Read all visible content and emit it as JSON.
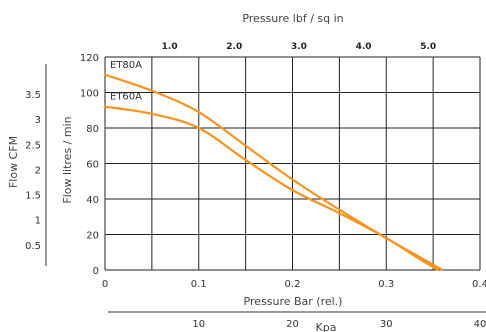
{
  "chart_data": {
    "type": "line",
    "title": "",
    "xlabel": "Pressure Bar (rel.)",
    "ylabel": "Flow litres / min",
    "xlim": [
      0,
      0.4
    ],
    "ylim": [
      0,
      120
    ],
    "x_ticks": [
      "0",
      "0.1",
      "0.2",
      "0.3",
      "0.4"
    ],
    "y_ticks": [
      "0",
      "20",
      "40",
      "60",
      "80",
      "100",
      "120"
    ],
    "grid": true,
    "line_color": "#f5941f",
    "series": [
      {
        "name": "ET80A",
        "x": [
          0.0,
          0.05,
          0.1,
          0.15,
          0.2,
          0.25,
          0.3,
          0.34,
          0.36
        ],
        "y": [
          110,
          101,
          89,
          70,
          51,
          34,
          18,
          6,
          0
        ]
      },
      {
        "name": "ET60A",
        "x": [
          0.0,
          0.05,
          0.1,
          0.15,
          0.2,
          0.25,
          0.3,
          0.33,
          0.355
        ],
        "y": [
          92,
          88,
          80,
          62,
          45,
          32,
          18,
          8,
          0
        ]
      }
    ],
    "secondary_axes": {
      "top": {
        "label": "Pressure lbf / sq in",
        "ticks": [
          {
            "label": "1.0",
            "value": 1.0
          },
          {
            "label": "2.0",
            "value": 2.0
          },
          {
            "label": "3.0",
            "value": 3.0
          },
          {
            "label": "4.0",
            "value": 4.0
          },
          {
            "label": "5.0",
            "value": 5.0
          }
        ],
        "to_bar": 0.0689476
      },
      "bottom": {
        "label": "Kpa",
        "ticks": [
          {
            "label": "10",
            "value": 10
          },
          {
            "label": "20",
            "value": 20
          },
          {
            "label": "30",
            "value": 30
          },
          {
            "label": "40",
            "value": 40
          }
        ],
        "to_bar": 0.01
      },
      "left": {
        "label": "Flow CFM",
        "ticks": [
          {
            "label": "0.5",
            "value": 0.5
          },
          {
            "label": "1",
            "value": 1
          },
          {
            "label": "1.5",
            "value": 1.5
          },
          {
            "label": "2",
            "value": 2
          },
          {
            "label": "2.5",
            "value": 2.5
          },
          {
            "label": "3",
            "value": 3
          },
          {
            "label": "3.5",
            "value": 3.5
          }
        ],
        "to_lpm": 28.3168
      }
    }
  }
}
